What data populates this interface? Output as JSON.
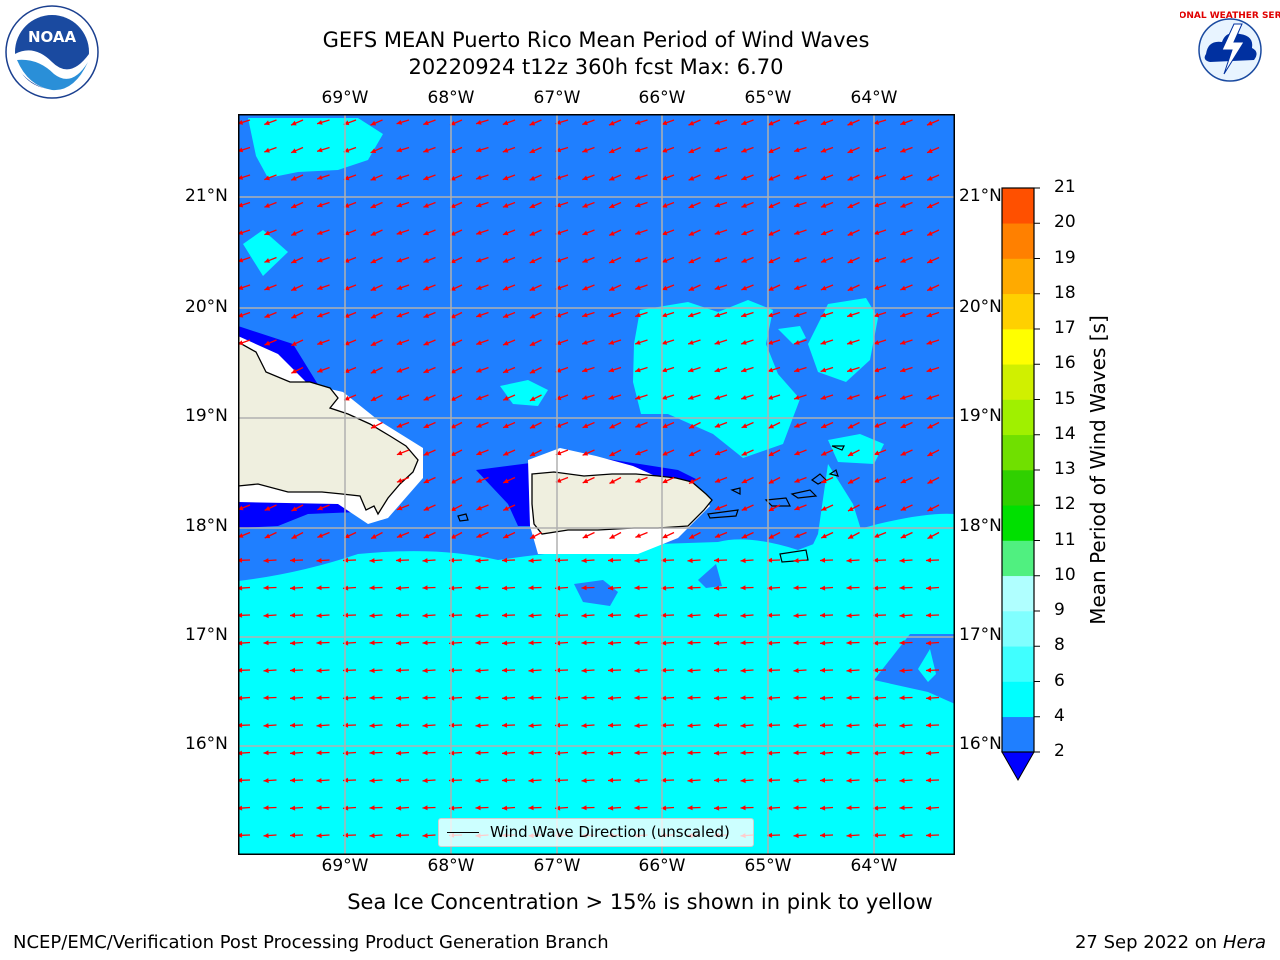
{
  "header": {
    "title_line1": "GEFS MEAN Puerto Rico Mean Period of Wind Waves",
    "title_line2": "20220924 t12z 360h fcst   Max: 6.70"
  },
  "logos": {
    "noaa_text": "NOAA",
    "nws_ring_text": "NATIONAL WEATHER SERVICE"
  },
  "map": {
    "lon_labels": [
      "69°W",
      "68°W",
      "67°W",
      "66°W",
      "65°W",
      "64°W"
    ],
    "lat_labels": [
      "21°N",
      "20°N",
      "19°N",
      "18°N",
      "17°N",
      "16°N"
    ]
  },
  "legend": {
    "label": "Wind Wave Direction (unscaled)"
  },
  "colorbar": {
    "title": "Mean Period of Wind Waves [s]",
    "levels": [
      2,
      4,
      6,
      8,
      9,
      10,
      11,
      12,
      13,
      14,
      15,
      16,
      17,
      18,
      19,
      20,
      21
    ],
    "labels": [
      "2",
      "4",
      "6",
      "8",
      "9",
      "10",
      "11",
      "12",
      "13",
      "14",
      "15",
      "16",
      "17",
      "18",
      "19",
      "20",
      "21"
    ],
    "colors": [
      "#1f7fff",
      "#00ffff",
      "#40ffff",
      "#80ffff",
      "#b0ffff",
      "#50f080",
      "#00e000",
      "#30d000",
      "#70e000",
      "#a0f000",
      "#d0f000",
      "#ffff00",
      "#ffd000",
      "#ffaa00",
      "#ff8000",
      "#ff5000",
      "#ff2000",
      "#ff0000"
    ],
    "extend_color": "#0000ff"
  },
  "colors": {
    "ocean_short_period": "#1f7fff",
    "ocean_mid_period": "#00ffff",
    "ocean_low": "#0000ff",
    "land": "#efefdf",
    "arrows": "#ff0000",
    "grid": "#b0b0b0"
  },
  "caption": "Sea Ice Concentration > 15% is shown in pink to yellow",
  "footer": {
    "left": "NCEP/EMC/Verification Post Processing Product Generation Branch",
    "date": "27 Sep 2022 on",
    "machine": "Hera"
  }
}
